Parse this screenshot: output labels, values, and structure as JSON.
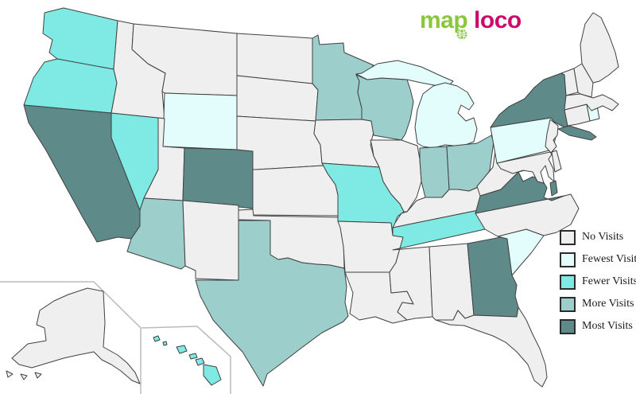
{
  "logo": {
    "part1": "map",
    "part2": "loco",
    "colors": {
      "part1": "#8cc63e",
      "part2": "#cb0c6d"
    }
  },
  "colors": {
    "background": "#ffffff",
    "state_border": "#404040",
    "inset_border": "#bbbbbb",
    "legend_text": "#1a1a1a"
  },
  "levels": {
    "no": "#efefef",
    "fewest": "#e3fdfc",
    "fewer": "#7fe9e4",
    "more": "#9ccecb",
    "most": "#5f8a8a"
  },
  "legend": {
    "items": [
      {
        "label": "No Visits",
        "level": "no"
      },
      {
        "label": "Fewest Visits",
        "level": "fewest"
      },
      {
        "label": "Fewer Visits",
        "level": "fewer"
      },
      {
        "label": "More Visits",
        "level": "more"
      },
      {
        "label": "Most Visits",
        "level": "most"
      }
    ]
  },
  "map": {
    "type": "choropleth-us-states",
    "states": [
      {
        "id": "WA",
        "name": "Washington",
        "level": "fewer"
      },
      {
        "id": "OR",
        "name": "Oregon",
        "level": "fewer"
      },
      {
        "id": "CA",
        "name": "California",
        "level": "most"
      },
      {
        "id": "NV",
        "name": "Nevada",
        "level": "fewer"
      },
      {
        "id": "ID",
        "name": "Idaho",
        "level": "no"
      },
      {
        "id": "MT",
        "name": "Montana",
        "level": "no"
      },
      {
        "id": "WY",
        "name": "Wyoming",
        "level": "fewest"
      },
      {
        "id": "UT",
        "name": "Utah",
        "level": "no"
      },
      {
        "id": "CO",
        "name": "Colorado",
        "level": "most"
      },
      {
        "id": "AZ",
        "name": "Arizona",
        "level": "more"
      },
      {
        "id": "NM",
        "name": "New Mexico",
        "level": "no"
      },
      {
        "id": "ND",
        "name": "North Dakota",
        "level": "no"
      },
      {
        "id": "SD",
        "name": "South Dakota",
        "level": "no"
      },
      {
        "id": "NE",
        "name": "Nebraska",
        "level": "no"
      },
      {
        "id": "KS",
        "name": "Kansas",
        "level": "no"
      },
      {
        "id": "OK",
        "name": "Oklahoma",
        "level": "no"
      },
      {
        "id": "TX",
        "name": "Texas",
        "level": "more"
      },
      {
        "id": "MN",
        "name": "Minnesota",
        "level": "more"
      },
      {
        "id": "IA",
        "name": "Iowa",
        "level": "no"
      },
      {
        "id": "MO",
        "name": "Missouri",
        "level": "fewer"
      },
      {
        "id": "AR",
        "name": "Arkansas",
        "level": "no"
      },
      {
        "id": "LA",
        "name": "Louisiana",
        "level": "no"
      },
      {
        "id": "WI",
        "name": "Wisconsin",
        "level": "more"
      },
      {
        "id": "IL",
        "name": "Illinois",
        "level": "no"
      },
      {
        "id": "MI",
        "name": "Michigan",
        "level": "fewest"
      },
      {
        "id": "IN",
        "name": "Indiana",
        "level": "more"
      },
      {
        "id": "OH",
        "name": "Ohio",
        "level": "more"
      },
      {
        "id": "KY",
        "name": "Kentucky",
        "level": "no"
      },
      {
        "id": "TN",
        "name": "Tennessee",
        "level": "fewer"
      },
      {
        "id": "MS",
        "name": "Mississippi",
        "level": "no"
      },
      {
        "id": "AL",
        "name": "Alabama",
        "level": "no"
      },
      {
        "id": "GA",
        "name": "Georgia",
        "level": "most"
      },
      {
        "id": "FL",
        "name": "Florida",
        "level": "no"
      },
      {
        "id": "SC",
        "name": "South Carolina",
        "level": "fewest"
      },
      {
        "id": "NC",
        "name": "North Carolina",
        "level": "no"
      },
      {
        "id": "VA",
        "name": "Virginia",
        "level": "most"
      },
      {
        "id": "WV",
        "name": "West Virginia",
        "level": "no"
      },
      {
        "id": "MD",
        "name": "Maryland",
        "level": "no"
      },
      {
        "id": "DE",
        "name": "Delaware",
        "level": "no"
      },
      {
        "id": "PA",
        "name": "Pennsylvania",
        "level": "fewest"
      },
      {
        "id": "NJ",
        "name": "New Jersey",
        "level": "no"
      },
      {
        "id": "NY",
        "name": "New York",
        "level": "most"
      },
      {
        "id": "CT",
        "name": "Connecticut",
        "level": "no"
      },
      {
        "id": "RI",
        "name": "Rhode Island",
        "level": "fewest"
      },
      {
        "id": "MA",
        "name": "Massachusetts",
        "level": "no"
      },
      {
        "id": "VT",
        "name": "Vermont",
        "level": "no"
      },
      {
        "id": "NH",
        "name": "New Hampshire",
        "level": "no"
      },
      {
        "id": "ME",
        "name": "Maine",
        "level": "no"
      },
      {
        "id": "AK",
        "name": "Alaska",
        "level": "no"
      },
      {
        "id": "HI",
        "name": "Hawaii",
        "level": "fewer"
      }
    ]
  }
}
